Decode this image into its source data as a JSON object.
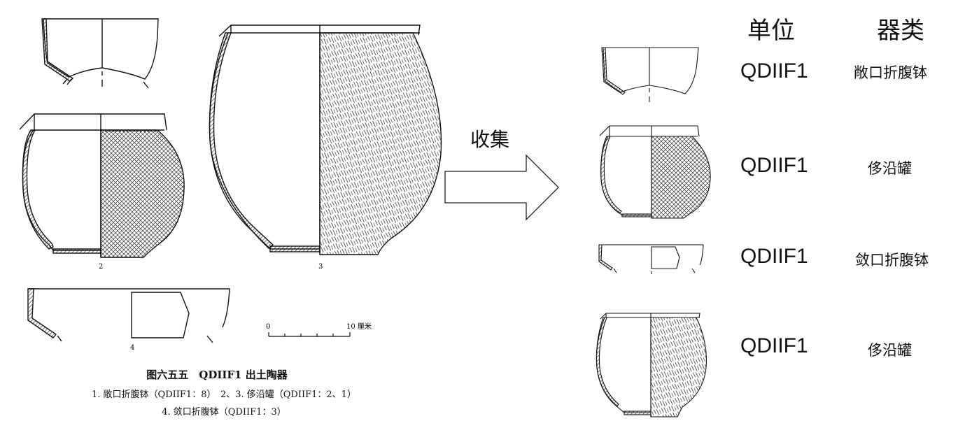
{
  "left_figure": {
    "figure_title": "图六五五　QDIIF1 出土陶器",
    "caption_line1": "1. 敞口折腹钵（QDIIF1：8）　2、3. 侈沿罐（QDIIF1：2、1）",
    "caption_line2": "4. 敛口折腹钵（QDIIF1：3）",
    "item_numbers": [
      "2",
      "3",
      "4"
    ],
    "scale_bar": {
      "start": "0",
      "end": "10 厘米"
    }
  },
  "arrow": {
    "label": "收集"
  },
  "table": {
    "headers": {
      "unit": "单位",
      "type": "器类"
    },
    "rows": [
      {
        "unit": "QDIIF1",
        "type": "敞口折腹钵"
      },
      {
        "unit": "QDIIF1",
        "type": "侈沿罐"
      },
      {
        "unit": "QDIIF1",
        "type": "敛口折腹钵"
      },
      {
        "unit": "QDIIF1",
        "type": "侈沿罐"
      }
    ]
  }
}
